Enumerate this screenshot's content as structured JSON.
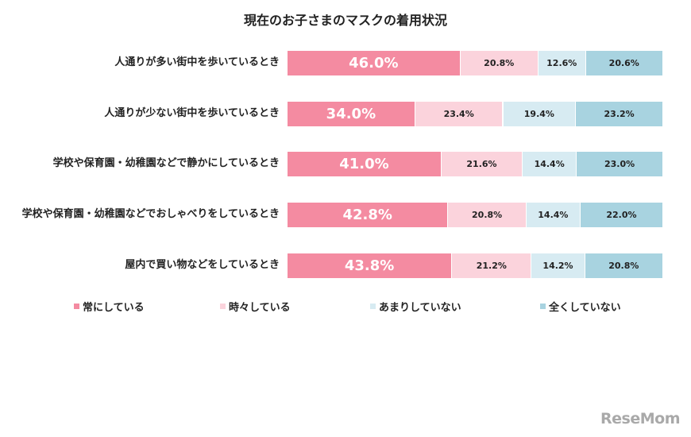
{
  "chart_data": {
    "type": "bar",
    "orientation": "horizontal",
    "stacked": true,
    "title": "現在のお子さまのマスクの着用状況",
    "categories": [
      "人通りが多い街中を歩いているとき",
      "人通りが少ない街中を歩いているとき",
      "学校や保育園・幼稚園などで静かにしているとき",
      "学校や保育園・幼稚園などでおしゃべりをしているとき",
      "屋内で買い物などをしているとき"
    ],
    "series": [
      {
        "name": "常にしている",
        "values": [
          46.0,
          34.0,
          41.0,
          42.8,
          43.8
        ],
        "color": "#f48ba1"
      },
      {
        "name": "時々している",
        "values": [
          20.8,
          23.4,
          21.6,
          20.8,
          21.2
        ],
        "color": "#fbd3dc"
      },
      {
        "name": "あまりしていない",
        "values": [
          12.6,
          19.4,
          14.4,
          14.4,
          14.2
        ],
        "color": "#d7ebf2"
      },
      {
        "name": "全くしていない",
        "values": [
          20.6,
          23.2,
          23.0,
          22.0,
          20.8
        ],
        "color": "#a8d3e0"
      }
    ],
    "value_format": "percent_1dp",
    "legend_position": "bottom",
    "grid": false,
    "xlim": [
      0,
      100
    ]
  },
  "logo": "ReseMom"
}
